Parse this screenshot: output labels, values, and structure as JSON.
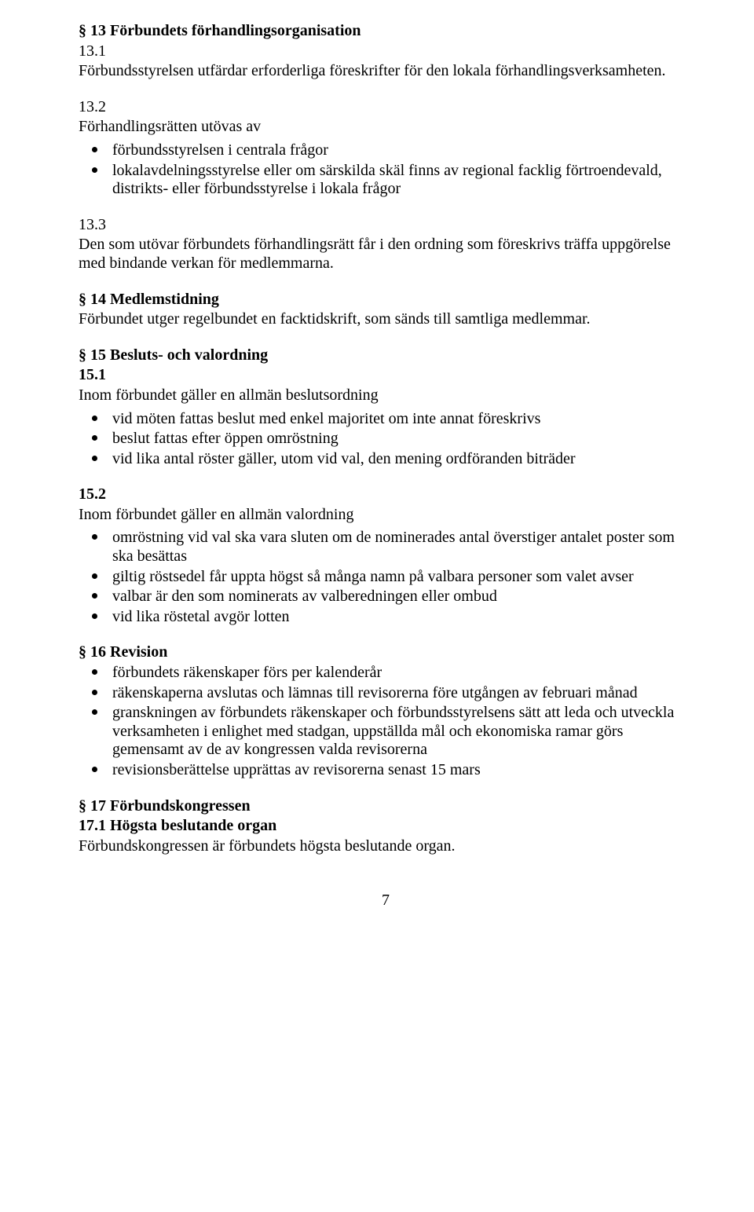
{
  "s13": {
    "heading": "§ 13 Förbundets förhandlingsorganisation",
    "p1_num": "13.1",
    "p1": "Förbundsstyrelsen utfärdar erforderliga föreskrifter för den lokala förhandlingsverksamheten.",
    "p2_num": "13.2",
    "p2_intro": "Förhandlingsrätten utövas av",
    "p2_items": [
      "förbundsstyrelsen i centrala frågor",
      "lokalavdelningsstyrelse eller om särskilda skäl finns av regional facklig förtroendevald, distrikts- eller förbundsstyrelse i lokala frågor"
    ],
    "p3_num": "13.3",
    "p3": "Den som utövar förbundets förhandlingsrätt får i den ordning som föreskrivs träffa uppgörelse med bindande verkan för medlemmarna."
  },
  "s14": {
    "heading": "§ 14 Medlemstidning",
    "p1": "Förbundet utger regelbundet en facktidskrift, som sänds till samtliga medlemmar."
  },
  "s15": {
    "heading": "§ 15 Besluts- och valordning",
    "p1_num": "15.1",
    "p1_intro": "Inom förbundet gäller en allmän beslutsordning",
    "p1_items": [
      "vid möten fattas beslut med enkel majoritet om inte annat föreskrivs",
      "beslut fattas efter öppen omröstning",
      "vid lika antal röster gäller, utom vid val, den mening ordföranden biträder"
    ],
    "p2_num": "15.2",
    "p2_intro": "Inom förbundet gäller en allmän valordning",
    "p2_items": [
      "omröstning vid val ska vara sluten om de nominerades antal överstiger antalet poster som ska besättas",
      "giltig röstsedel får uppta högst så många namn på valbara personer som valet avser",
      "valbar är den som nominerats av valberedningen eller ombud",
      "vid lika röstetal avgör lotten"
    ]
  },
  "s16": {
    "heading": "§ 16 Revision",
    "items": [
      "förbundets räkenskaper förs per kalenderår",
      "räkenskaperna avslutas och lämnas till revisorerna före utgången av februari månad",
      "granskningen av förbundets räkenskaper och förbundsstyrelsens sätt att leda och utveckla verksamheten i enlighet med stadgan, uppställda mål och ekonomiska ramar görs gemensamt av de av kongressen valda revisorerna",
      "revisionsberättelse upprättas av revisorerna senast 15 mars"
    ]
  },
  "s17": {
    "heading": "§ 17 Förbundskongressen",
    "sub": "17.1 Högsta beslutande organ",
    "p1": "Förbundskongressen är förbundets högsta beslutande organ."
  },
  "page_number": "7"
}
